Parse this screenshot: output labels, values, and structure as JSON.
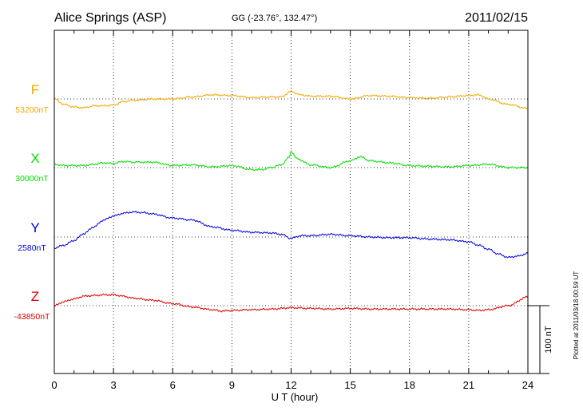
{
  "chart_data": {
    "type": "line",
    "title": "Alice Springs (ASP)",
    "subtitle": "GG (-23.76°, 132.47°)",
    "date": "2011/02/15",
    "xlabel": "U T (hour)",
    "xlim": [
      0,
      24
    ],
    "xticks": [
      "0",
      "3",
      "6",
      "9",
      "12",
      "15",
      "18",
      "21",
      "24"
    ],
    "grid": true,
    "scale_bar_label": "100 nT",
    "scale_bar_nT": 100,
    "footer_note": "Plotted at 2011/03/18 00:59 UT",
    "series": [
      {
        "name": "F",
        "baseline_label": "53200nT",
        "baseline_nT": 53200,
        "color": "#f0a800",
        "x": [
          0,
          0.5,
          1,
          1.5,
          2,
          2.5,
          3,
          3.5,
          4,
          5,
          6,
          7,
          8,
          9,
          10,
          11,
          11.5,
          12,
          12.5,
          13,
          14,
          15,
          16,
          17,
          18,
          19,
          20,
          21,
          21.5,
          22,
          23,
          24
        ],
        "y": [
          0,
          -8,
          -12,
          -13,
          -10,
          -10,
          -9,
          -4,
          -2,
          0,
          0,
          3,
          6,
          5,
          2,
          3,
          3,
          11,
          6,
          4,
          4,
          0,
          5,
          4,
          2,
          1,
          3,
          5,
          6,
          0,
          -8,
          -14
        ]
      },
      {
        "name": "X",
        "baseline_label": "30000nT",
        "baseline_nT": 30000,
        "color": "#00dd00",
        "x": [
          0,
          0.5,
          1,
          1.5,
          2,
          2.5,
          3,
          3.5,
          4,
          5,
          6,
          7,
          8,
          9,
          10,
          10.5,
          11,
          11.5,
          11.9,
          12,
          12.3,
          13,
          14,
          15,
          15.5,
          16,
          17,
          18,
          19,
          20,
          21,
          22,
          23,
          24
        ],
        "y": [
          5,
          3,
          3,
          3,
          5,
          7,
          6,
          9,
          8,
          8,
          3,
          4,
          1,
          3,
          -3,
          -3,
          0,
          4,
          15,
          24,
          13,
          4,
          0,
          10,
          16,
          10,
          7,
          3,
          2,
          1,
          3,
          5,
          0,
          0
        ]
      },
      {
        "name": "Y",
        "baseline_label": "2580nT",
        "baseline_nT": 2580,
        "color": "#0000dd",
        "x": [
          0,
          0.5,
          1,
          1.5,
          2,
          2.5,
          3,
          3.5,
          4,
          4.5,
          5,
          6,
          7,
          8,
          9,
          10,
          11,
          11.5,
          12,
          12.5,
          13,
          14,
          15,
          16,
          17,
          18,
          19,
          20,
          21,
          21.5,
          22,
          22.5,
          23,
          23.5,
          24
        ],
        "y": [
          -16,
          -12,
          -5,
          5,
          15,
          25,
          31,
          35,
          37,
          36,
          34,
          28,
          25,
          15,
          10,
          7,
          6,
          4,
          -2,
          2,
          2,
          4,
          2,
          0,
          -1,
          -1,
          -3,
          -4,
          -7,
          -12,
          -18,
          -25,
          -30,
          -28,
          -24
        ]
      },
      {
        "name": "Z",
        "baseline_label": "-43850nT",
        "baseline_nT": -43850,
        "color": "#dd0000",
        "x": [
          0,
          0.5,
          1,
          1.5,
          2,
          2.5,
          3,
          3.5,
          4,
          5,
          6,
          7,
          8,
          8.5,
          9,
          10,
          11,
          12,
          13,
          14,
          15,
          16,
          17,
          18,
          19,
          20,
          21,
          21.5,
          22,
          23,
          24
        ],
        "y": [
          0,
          6,
          10,
          14,
          15,
          16,
          16,
          14,
          11,
          8,
          3,
          -2,
          -6,
          -8,
          -7,
          -6,
          -5,
          -3,
          -4,
          -5,
          -4,
          -5,
          -5,
          -5,
          -5,
          -5,
          -6,
          -7,
          -6,
          0,
          13
        ]
      }
    ]
  }
}
